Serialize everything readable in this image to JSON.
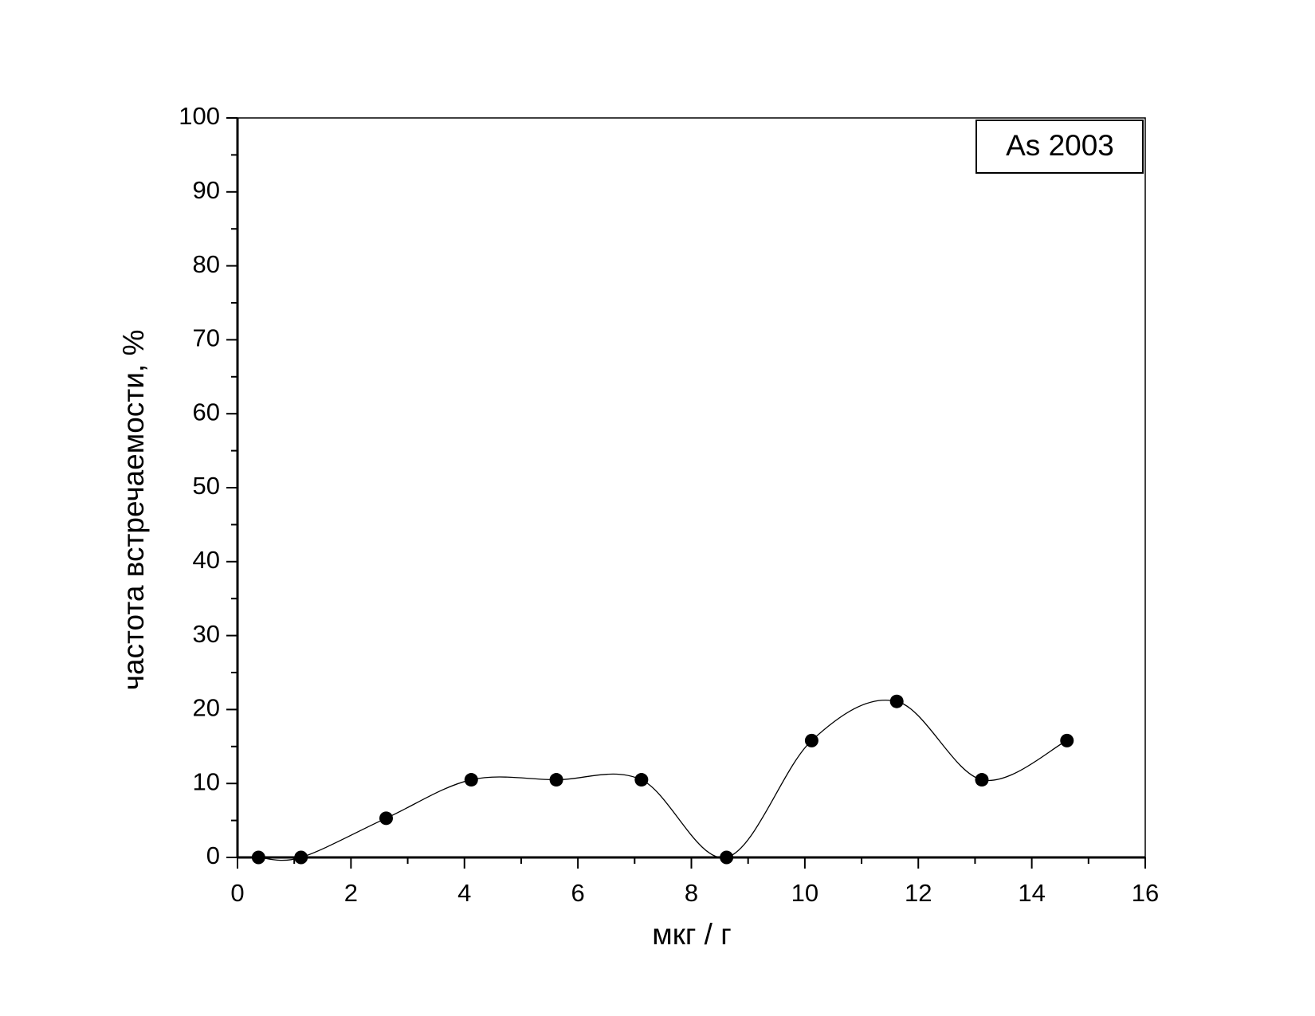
{
  "chart_data": {
    "type": "line",
    "x_label": "мкг / г",
    "y_label": "частота встречаемости, %",
    "x": [
      0.37,
      1.12,
      2.62,
      4.12,
      5.62,
      7.12,
      8.62,
      10.12,
      11.62,
      13.12,
      14.62
    ],
    "series": [
      {
        "name": "As 2003",
        "color": "#000000",
        "values": [
          0,
          0,
          5.3,
          10.5,
          10.5,
          10.5,
          0,
          15.8,
          21.1,
          10.5,
          15.8
        ]
      }
    ],
    "marker": "circle",
    "smooth": true,
    "xlim": [
      0,
      16
    ],
    "xticks": [
      0,
      2,
      4,
      6,
      8,
      10,
      12,
      14,
      16
    ],
    "ylim": [
      0,
      100
    ],
    "yticks": [
      0,
      10,
      20,
      30,
      40,
      50,
      60,
      70,
      80,
      90,
      100
    ],
    "grid": false,
    "legend": "upper right"
  }
}
